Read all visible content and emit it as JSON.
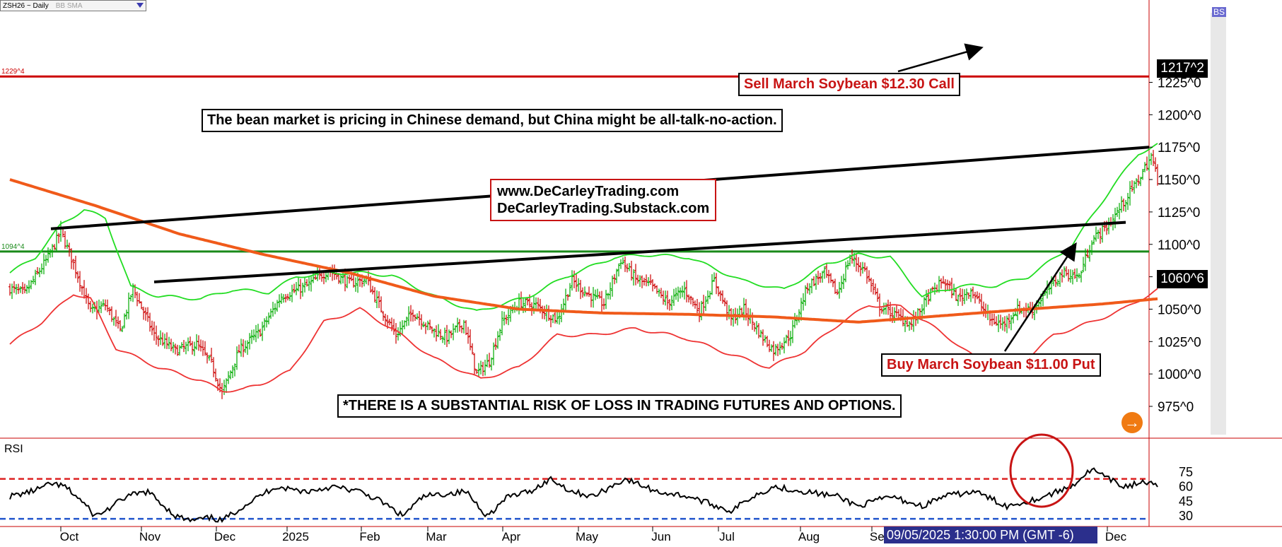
{
  "header": {
    "symbol": "ZSH26 ~ Daily",
    "study": "BB SMA",
    "bs_badge": "BS"
  },
  "price_tags": {
    "last": "1217^2",
    "second": "1060^6"
  },
  "annotations": {
    "sell_call": "Sell March Soybean $12.30 Call",
    "headline": "The bean market is pricing in Chinese demand, but China might be all-talk-no-action.",
    "site1": "www.DeCarleyTrading.com",
    "site2": "DeCarleyTrading.Substack.com",
    "buy_put": "Buy March Soybean $11.00 Put",
    "risk": "*THERE IS A SUBSTANTIAL RISK OF LOSS IN TRADING FUTURES AND OPTIONS."
  },
  "status": {
    "datetime": "09/05/2025 1:30:00 PM (GMT -6)",
    "go_arrow": "→"
  },
  "chart_data": [
    {
      "type": "ohlc",
      "title": "ZSH26 ~ Daily",
      "ylim": [
        965,
        1235
      ],
      "y_ticks": [
        975,
        1000,
        1025,
        1050,
        1075,
        1100,
        1125,
        1150,
        1175,
        1200,
        1225
      ],
      "y_tick_labels": [
        "975^0",
        "1000^0",
        "1025^0",
        "1050^0",
        "1075^0",
        "1100^0",
        "1125^0",
        "1150^0",
        "1175^0",
        "1200^0",
        "1225^0"
      ],
      "x_labels": [
        "Oct",
        "Nov",
        "Dec",
        "2025",
        "Feb",
        "Mar",
        "Apr",
        "May",
        "Jun",
        "Jul",
        "Aug",
        "Sep",
        "Dec"
      ],
      "horizontal_lines": [
        {
          "label": "1229^4",
          "value": 1229.5,
          "color": "#cc0000"
        },
        {
          "label": "1094^4",
          "value": 1094.5,
          "color": "#1a8a1a"
        }
      ],
      "series": [
        {
          "name": "price",
          "color_up": "#00aa00",
          "color_down": "#cc0000",
          "anchors": [
            [
              0,
              1066
            ],
            [
              7,
              1062
            ],
            [
              18,
              1090
            ],
            [
              24,
              1110
            ],
            [
              30,
              1085
            ],
            [
              38,
              1048
            ],
            [
              45,
              1053
            ],
            [
              52,
              1033
            ],
            [
              58,
              1066
            ],
            [
              68,
              1030
            ],
            [
              78,
              1018
            ],
            [
              88,
              1023
            ],
            [
              95,
              1008
            ],
            [
              100,
              985
            ],
            [
              108,
              1018
            ],
            [
              118,
              1033
            ],
            [
              128,
              1060
            ],
            [
              140,
              1068
            ],
            [
              150,
              1080
            ],
            [
              160,
              1070
            ],
            [
              168,
              1073
            ],
            [
              175,
              1050
            ],
            [
              182,
              1030
            ],
            [
              190,
              1048
            ],
            [
              198,
              1035
            ],
            [
              206,
              1028
            ],
            [
              214,
              1040
            ],
            [
              220,
              1000
            ],
            [
              226,
              1010
            ],
            [
              232,
              1040
            ],
            [
              240,
              1055
            ],
            [
              248,
              1053
            ],
            [
              258,
              1042
            ],
            [
              265,
              1072
            ],
            [
              272,
              1062
            ],
            [
              280,
              1054
            ],
            [
              288,
              1088
            ],
            [
              295,
              1073
            ],
            [
              302,
              1068
            ],
            [
              310,
              1055
            ],
            [
              318,
              1065
            ],
            [
              325,
              1048
            ],
            [
              332,
              1072
            ],
            [
              340,
              1042
            ],
            [
              346,
              1050
            ],
            [
              354,
              1030
            ],
            [
              360,
              1018
            ],
            [
              368,
              1030
            ],
            [
              376,
              1068
            ],
            [
              384,
              1078
            ],
            [
              390,
              1062
            ],
            [
              396,
              1090
            ],
            [
              403,
              1080
            ],
            [
              410,
              1052
            ],
            [
              418,
              1045
            ],
            [
              425,
              1038
            ],
            [
              433,
              1060
            ],
            [
              440,
              1072
            ],
            [
              447,
              1058
            ],
            [
              453,
              1065
            ],
            [
              462,
              1042
            ],
            [
              468,
              1038
            ],
            [
              475,
              1050
            ],
            [
              482,
              1050
            ],
            [
              488,
              1062
            ],
            [
              496,
              1078
            ],
            [
              504,
              1075
            ],
            [
              510,
              1103
            ],
            [
              518,
              1115
            ],
            [
              524,
              1130
            ],
            [
              532,
              1150
            ],
            [
              538,
              1168
            ],
            [
              541,
              1150
            ]
          ]
        },
        {
          "name": "bb_upper",
          "color": "#22dd22",
          "anchors": [
            [
              0,
              1078
            ],
            [
              12,
              1090
            ],
            [
              24,
              1115
            ],
            [
              35,
              1127
            ],
            [
              45,
              1120
            ],
            [
              53,
              1085
            ],
            [
              57,
              1067
            ],
            [
              70,
              1060
            ],
            [
              90,
              1058
            ],
            [
              105,
              1065
            ],
            [
              122,
              1063
            ],
            [
              135,
              1075
            ],
            [
              150,
              1078
            ],
            [
              165,
              1078
            ],
            [
              180,
              1076
            ],
            [
              200,
              1060
            ],
            [
              220,
              1048
            ],
            [
              245,
              1060
            ],
            [
              262,
              1075
            ],
            [
              285,
              1090
            ],
            [
              300,
              1092
            ],
            [
              320,
              1090
            ],
            [
              345,
              1072
            ],
            [
              365,
              1065
            ],
            [
              385,
              1085
            ],
            [
              400,
              1092
            ],
            [
              415,
              1090
            ],
            [
              430,
              1060
            ],
            [
              448,
              1068
            ],
            [
              465,
              1068
            ],
            [
              480,
              1075
            ],
            [
              500,
              1098
            ],
            [
              520,
              1145
            ],
            [
              532,
              1170
            ],
            [
              541,
              1177
            ]
          ]
        },
        {
          "name": "bb_lower",
          "color": "#ee3333",
          "anchors": [
            [
              0,
              1023
            ],
            [
              15,
              1040
            ],
            [
              30,
              1062
            ],
            [
              38,
              1058
            ],
            [
              50,
              1020
            ],
            [
              70,
              1005
            ],
            [
              90,
              995
            ],
            [
              100,
              987
            ],
            [
              110,
              988
            ],
            [
              118,
              992
            ],
            [
              132,
              1002
            ],
            [
              148,
              1040
            ],
            [
              165,
              1050
            ],
            [
              180,
              1035
            ],
            [
              200,
              1012
            ],
            [
              222,
              996
            ],
            [
              240,
              1005
            ],
            [
              258,
              1030
            ],
            [
              275,
              1030
            ],
            [
              295,
              1035
            ],
            [
              318,
              1028
            ],
            [
              340,
              1015
            ],
            [
              358,
              1005
            ],
            [
              375,
              1018
            ],
            [
              392,
              1040
            ],
            [
              405,
              1053
            ],
            [
              420,
              1052
            ],
            [
              432,
              1040
            ],
            [
              445,
              1025
            ],
            [
              465,
              1000
            ],
            [
              478,
              1010
            ],
            [
              492,
              1030
            ],
            [
              510,
              1040
            ],
            [
              525,
              1050
            ],
            [
              541,
              1065
            ]
          ]
        },
        {
          "name": "sma",
          "color": "#f05a1a",
          "anchors": [
            [
              0,
              1150
            ],
            [
              40,
              1130
            ],
            [
              80,
              1108
            ],
            [
              120,
              1092
            ],
            [
              160,
              1078
            ],
            [
              200,
              1060
            ],
            [
              240,
              1050
            ],
            [
              280,
              1047
            ],
            [
              320,
              1046
            ],
            [
              360,
              1044
            ],
            [
              400,
              1040
            ],
            [
              440,
              1045
            ],
            [
              480,
              1050
            ],
            [
              515,
              1054
            ],
            [
              541,
              1058
            ]
          ]
        }
      ],
      "trendlines": [
        {
          "value_start": 1112,
          "value_end": 1175
        },
        {
          "value_start": 1071,
          "value_end": 1117
        }
      ]
    },
    {
      "type": "line",
      "title": "RSI",
      "ylim": [
        20,
        85
      ],
      "y_ticks": [
        30,
        45,
        60,
        75
      ],
      "reference_lines": [
        {
          "value": 68,
          "color": "#dd2222"
        },
        {
          "value": 27,
          "color": "#2255cc"
        }
      ],
      "series": [
        {
          "name": "RSI",
          "color": "#000000",
          "anchors": [
            [
              0,
              50
            ],
            [
              10,
              55
            ],
            [
              20,
              63
            ],
            [
              26,
              60
            ],
            [
              34,
              45
            ],
            [
              40,
              30
            ],
            [
              45,
              35
            ],
            [
              55,
              50
            ],
            [
              65,
              55
            ],
            [
              78,
              30
            ],
            [
              85,
              25
            ],
            [
              95,
              28
            ],
            [
              100,
              25
            ],
            [
              110,
              40
            ],
            [
              125,
              60
            ],
            [
              140,
              55
            ],
            [
              152,
              60
            ],
            [
              165,
              55
            ],
            [
              175,
              45
            ],
            [
              185,
              30
            ],
            [
              195,
              50
            ],
            [
              215,
              55
            ],
            [
              225,
              30
            ],
            [
              235,
              50
            ],
            [
              245,
              55
            ],
            [
              255,
              68
            ],
            [
              265,
              55
            ],
            [
              275,
              50
            ],
            [
              290,
              68
            ],
            [
              305,
              55
            ],
            [
              320,
              50
            ],
            [
              340,
              35
            ],
            [
              350,
              50
            ],
            [
              360,
              60
            ],
            [
              375,
              55
            ],
            [
              390,
              50
            ],
            [
              400,
              40
            ],
            [
              415,
              50
            ],
            [
              430,
              40
            ],
            [
              440,
              50
            ],
            [
              455,
              55
            ],
            [
              470,
              40
            ],
            [
              485,
              48
            ],
            [
              500,
              60
            ],
            [
              510,
              78
            ],
            [
              516,
              70
            ],
            [
              525,
              60
            ],
            [
              535,
              65
            ],
            [
              541,
              60
            ]
          ]
        }
      ]
    }
  ]
}
